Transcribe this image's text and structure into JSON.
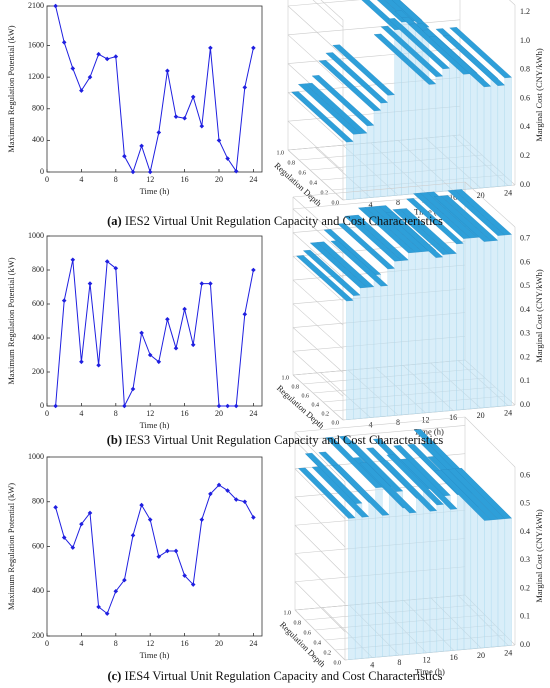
{
  "chart_data": [
    {
      "type": "line",
      "y_label": "Maximum Regulation Potential (kW)",
      "x_label": "Time (h)",
      "color": "#1f1fe0",
      "x": [
        1,
        2,
        3,
        4,
        5,
        6,
        7,
        8,
        9,
        10,
        11,
        12,
        13,
        14,
        15,
        16,
        17,
        18,
        19,
        20,
        21,
        22,
        23,
        24
      ],
      "values": [
        2100,
        1640,
        1310,
        1030,
        1200,
        1490,
        1430,
        1460,
        200,
        0,
        330,
        0,
        500,
        1280,
        700,
        680,
        950,
        580,
        1570,
        400,
        170,
        10,
        1070,
        1570
      ],
      "xlim": [
        0,
        25
      ],
      "xticks": [
        0,
        4,
        8,
        12,
        16,
        20,
        24
      ],
      "ylim": [
        0,
        2100
      ],
      "yticks": [
        0,
        400,
        800,
        1200,
        1600,
        2100
      ]
    },
    {
      "type": "surface",
      "z_label": "Marginal Cost (CNY/kWh)",
      "x_label": "Time (h)",
      "depth_label": "Regulation Depth",
      "color": "#2e9fd9",
      "x": [
        1,
        2,
        3,
        4,
        5,
        6,
        7,
        8,
        9,
        10,
        11,
        12,
        13,
        14,
        15,
        16,
        17,
        18,
        19,
        20,
        21,
        22,
        23,
        24
      ],
      "values": [
        0.4,
        0.45,
        0.45,
        0.5,
        0.6,
        0.65,
        0.7,
        1.15,
        1.2,
        1.2,
        1.2,
        1.15,
        0.75,
        0.8,
        0.85,
        0.9,
        0.85,
        0.8,
        0.8,
        0.75,
        0.7,
        0.75,
        0.7,
        0.75
      ],
      "xlim": [
        0,
        25
      ],
      "xticks": [
        4,
        8,
        12,
        16,
        20,
        24
      ],
      "depth_ticks": [
        {
          "value": 0,
          "label": "0.0"
        },
        0.2,
        0.4,
        0.6,
        0.8,
        {
          "value": 1,
          "label": "1.0"
        }
      ],
      "zlim": [
        0,
        1.25
      ],
      "zticks": [
        {
          "value": 0,
          "label": "0.0"
        },
        0.2,
        0.4,
        0.6,
        0.8,
        {
          "value": 1,
          "label": "1.0"
        },
        1.2
      ]
    },
    {
      "type": "line",
      "y_label": "Maximum Regulation Potential (kW)",
      "x_label": "Time (h)",
      "color": "#1f1fe0",
      "x": [
        1,
        2,
        3,
        4,
        5,
        6,
        7,
        8,
        9,
        10,
        11,
        12,
        13,
        14,
        15,
        16,
        17,
        18,
        19,
        20,
        21,
        22,
        23,
        24
      ],
      "values": [
        0,
        620,
        860,
        260,
        720,
        240,
        850,
        810,
        0,
        100,
        430,
        300,
        260,
        510,
        340,
        570,
        360,
        720,
        720,
        0,
        0,
        0,
        540,
        800
      ],
      "xlim": [
        0,
        25
      ],
      "xticks": [
        0,
        4,
        8,
        12,
        16,
        20,
        24
      ],
      "ylim": [
        0,
        1000
      ],
      "yticks": [
        0,
        200,
        400,
        600,
        800,
        1000
      ]
    },
    {
      "type": "surface",
      "z_label": "Marginal Cost (CNY/kWh)",
      "x_label": "Time (h)",
      "depth_label": "Regulation Depth",
      "color": "#2e9fd9",
      "x": [
        1,
        2,
        3,
        4,
        5,
        6,
        7,
        8,
        9,
        10,
        11,
        12,
        13,
        14,
        15,
        16,
        17,
        18,
        19,
        20,
        21,
        22,
        23,
        24
      ],
      "values": [
        0.5,
        0.52,
        0.55,
        0.55,
        0.6,
        0.55,
        0.62,
        0.65,
        0.65,
        0.68,
        0.68,
        0.68,
        0.68,
        0.65,
        0.66,
        0.66,
        0.7,
        0.72,
        0.72,
        0.72,
        0.7,
        0.7,
        0.72,
        0.72
      ],
      "xlim": [
        0,
        25
      ],
      "xticks": [
        4,
        8,
        12,
        16,
        20,
        24
      ],
      "depth_ticks": [
        {
          "value": 0,
          "label": "0.0"
        },
        0.2,
        0.4,
        0.6,
        0.8,
        {
          "value": 1,
          "label": "1.0"
        }
      ],
      "zlim": [
        0,
        0.75
      ],
      "zticks": [
        {
          "value": 0,
          "label": "0.0"
        },
        0.1,
        0.2,
        0.3,
        0.4,
        0.5,
        0.6,
        0.7
      ]
    },
    {
      "type": "line",
      "y_label": "Maximum Regulation Potential (kW)",
      "x_label": "Time (h)",
      "color": "#1f1fe0",
      "x": [
        1,
        2,
        3,
        4,
        5,
        6,
        7,
        8,
        9,
        10,
        11,
        12,
        13,
        14,
        15,
        16,
        17,
        18,
        19,
        20,
        21,
        22,
        23,
        24
      ],
      "values": [
        775,
        640,
        595,
        700,
        750,
        330,
        300,
        400,
        450,
        650,
        785,
        720,
        555,
        580,
        580,
        470,
        430,
        720,
        835,
        875,
        850,
        810,
        800,
        730
      ],
      "xlim": [
        0,
        25
      ],
      "xticks": [
        0,
        4,
        8,
        12,
        16,
        20,
        24
      ],
      "ylim": [
        200,
        1000
      ],
      "yticks": [
        200,
        400,
        600,
        800,
        1000
      ]
    },
    {
      "type": "surface",
      "z_label": "Marginal Cost (CNY/kWh)",
      "x_label": "Time (h)",
      "depth_label": "Regulation Depth",
      "color": "#2e9fd9",
      "x": [
        1,
        2,
        3,
        4,
        5,
        6,
        7,
        8,
        9,
        10,
        11,
        12,
        13,
        14,
        15,
        16,
        17,
        18,
        19,
        20,
        21,
        22,
        23,
        24
      ],
      "values": [
        0.5,
        0.55,
        0.5,
        0.55,
        0.6,
        0.5,
        0.6,
        0.58,
        0.52,
        0.5,
        0.55,
        0.58,
        0.5,
        0.52,
        0.55,
        0.5,
        0.55,
        0.6,
        0.55,
        0.5,
        0.45,
        0.45,
        0.45,
        0.45
      ],
      "xlim": [
        0,
        25
      ],
      "xticks": [
        4,
        8,
        12,
        16,
        20,
        24
      ],
      "depth_ticks": [
        {
          "value": 0,
          "label": "0.0"
        },
        0.2,
        0.4,
        0.6,
        0.8,
        {
          "value": 1,
          "label": "1.0"
        }
      ],
      "zlim": [
        0,
        0.63
      ],
      "zticks": [
        {
          "value": 0,
          "label": "0.0"
        },
        0.1,
        0.2,
        0.3,
        0.4,
        0.5,
        0.6
      ]
    }
  ],
  "captions": [
    {
      "label": "(a)",
      "text": "IES2 Virtual Unit Regulation Capacity and Cost Characteristics"
    },
    {
      "label": "(b)",
      "text": "IES3 Virtual Unit Regulation Capacity and Cost Characteristics"
    },
    {
      "label": "(c)",
      "text": "IES4 Virtual Unit Regulation Capacity and Cost Characteristics"
    }
  ]
}
